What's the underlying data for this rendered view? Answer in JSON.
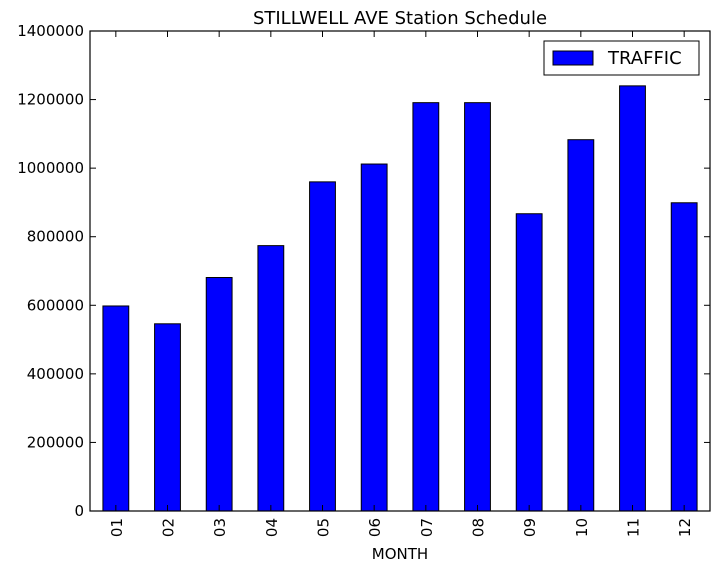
{
  "chart_data": {
    "type": "bar",
    "title": "STILLWELL AVE Station Schedule",
    "xlabel": "MONTH",
    "ylabel": "",
    "categories": [
      "01",
      "02",
      "03",
      "04",
      "05",
      "06",
      "07",
      "08",
      "09",
      "10",
      "11",
      "12"
    ],
    "series": [
      {
        "name": "TRAFFIC",
        "values": [
          598000,
          546000,
          681000,
          774000,
          960000,
          1012000,
          1191000,
          1191000,
          867000,
          1083000,
          1240000,
          899000
        ]
      }
    ],
    "ylim": [
      0,
      1400000
    ],
    "yticks": [
      "0",
      "200000",
      "400000",
      "600000",
      "800000",
      "1000000",
      "1200000",
      "1400000"
    ],
    "grid": false,
    "legend_position": "top-right",
    "bar_color": "#0000ff",
    "edge_color": "#000000"
  }
}
